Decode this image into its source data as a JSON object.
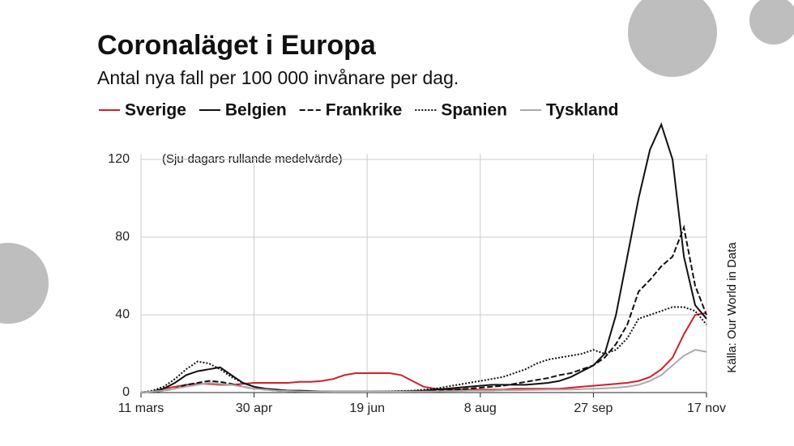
{
  "chart_data": {
    "type": "line",
    "title": "Coronaläget i Europa",
    "subtitle": "Antal nya fall per 100 000 invånare per dag.",
    "note": "(Sju-dagars rullande medelvärde)",
    "source": "Källa: Our World in Data",
    "categories": [
      "11 mars",
      null,
      null,
      null,
      null,
      null,
      null,
      null,
      null,
      null,
      "30 apr",
      null,
      null,
      null,
      null,
      null,
      null,
      null,
      null,
      null,
      "19 jun",
      null,
      null,
      null,
      null,
      null,
      null,
      null,
      null,
      null,
      "8 aug",
      null,
      null,
      null,
      null,
      null,
      null,
      null,
      null,
      null,
      "27 sep",
      null,
      null,
      null,
      null,
      null,
      null,
      null,
      null,
      null,
      "17 nov"
    ],
    "series": [
      {
        "name": "Sverige",
        "color": "#d0202a",
        "dash": "none",
        "values": [
          0,
          0.5,
          2,
          3,
          4,
          4.5,
          4.5,
          4,
          4,
          4.5,
          5,
          5,
          5,
          5,
          5.5,
          5.5,
          6,
          7,
          9,
          10,
          10,
          10,
          10,
          9,
          6,
          3,
          2,
          1.5,
          1.5,
          1.5,
          1.5,
          1.5,
          1.5,
          2,
          2,
          2,
          2,
          2,
          2.5,
          3,
          3.5,
          4,
          4.5,
          5,
          6,
          8,
          12,
          18,
          30,
          40,
          41
        ]
      },
      {
        "name": "Belgien",
        "color": "#111111",
        "dash": "none",
        "values": [
          0,
          0.5,
          2,
          5,
          9,
          11,
          12,
          13,
          9,
          5,
          3,
          2,
          1.5,
          1,
          1,
          0.8,
          0.6,
          0.5,
          0.5,
          0.5,
          0.5,
          0.5,
          0.5,
          0.6,
          0.8,
          1,
          1.5,
          2,
          2.5,
          3,
          3.5,
          4,
          4,
          4,
          4,
          4.5,
          5,
          6,
          8,
          11,
          14,
          20,
          40,
          70,
          100,
          125,
          138,
          120,
          70,
          45,
          38
        ]
      },
      {
        "name": "Frankrike",
        "color": "#111111",
        "dash": "7,3",
        "values": [
          0,
          0.3,
          1,
          2,
          4,
          5,
          6,
          5.5,
          4.5,
          3,
          2,
          1.5,
          1,
          0.8,
          0.6,
          0.5,
          0.4,
          0.3,
          0.3,
          0.3,
          0.3,
          0.3,
          0.3,
          0.4,
          0.5,
          0.7,
          0.9,
          1.2,
          1.6,
          2,
          2.5,
          3,
          3.5,
          4.5,
          5.5,
          6.5,
          7.5,
          9,
          10,
          12,
          14,
          18,
          25,
          35,
          52,
          58,
          65,
          70,
          85,
          55,
          40
        ]
      },
      {
        "name": "Spanien",
        "color": "#111111",
        "dash": "2,2",
        "values": [
          0,
          1,
          3,
          7,
          12,
          16,
          15,
          12,
          8,
          5,
          3,
          2,
          1.5,
          1,
          0.8,
          0.6,
          0.5,
          0.4,
          0.4,
          0.4,
          0.4,
          0.5,
          0.6,
          0.8,
          1,
          1.5,
          2,
          3,
          4,
          5,
          6,
          7,
          8,
          10,
          12,
          15,
          17,
          18,
          19,
          20,
          22,
          20,
          22,
          28,
          38,
          40,
          42,
          44,
          44,
          42,
          35
        ]
      },
      {
        "name": "Tyskland",
        "color": "#aaaaaa",
        "dash": "none",
        "values": [
          0,
          0.5,
          1,
          2,
          3,
          4,
          5,
          4.5,
          4,
          3,
          2,
          1.5,
          1,
          0.8,
          0.6,
          0.5,
          0.5,
          0.4,
          0.4,
          0.4,
          0.4,
          0.4,
          0.4,
          0.4,
          0.5,
          0.5,
          0.6,
          0.7,
          0.8,
          1,
          1,
          1,
          1.2,
          1.2,
          1.3,
          1.4,
          1.5,
          1.5,
          1.6,
          1.8,
          2,
          2.2,
          2.5,
          3,
          4,
          6,
          9,
          14,
          19,
          22,
          21
        ]
      }
    ],
    "ylim": [
      0,
      140
    ],
    "yticks": [
      0,
      40,
      80,
      120
    ],
    "grid": true
  }
}
